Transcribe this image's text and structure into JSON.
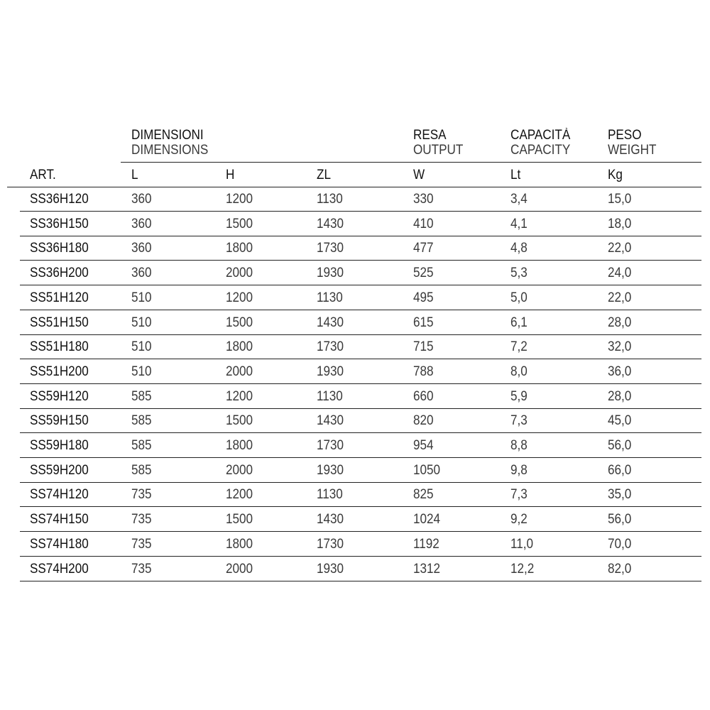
{
  "header": {
    "groups": [
      {
        "it": "DIMENSIONI",
        "en": "DIMENSIONS"
      },
      {
        "it": "RESA",
        "en": "OUTPUT"
      },
      {
        "it": "CAPACITÀ",
        "en": "CAPACITY"
      },
      {
        "it": "PESO",
        "en": "WEIGHT"
      }
    ],
    "columns": [
      "ART.",
      "L",
      "H",
      "ZL",
      "W",
      "Lt",
      "Kg"
    ]
  },
  "rows": [
    [
      "SS36H120",
      "360",
      "1200",
      "1130",
      "330",
      "3,4",
      "15,0"
    ],
    [
      "SS36H150",
      "360",
      "1500",
      "1430",
      "410",
      "4,1",
      "18,0"
    ],
    [
      "SS36H180",
      "360",
      "1800",
      "1730",
      "477",
      "4,8",
      "22,0"
    ],
    [
      "SS36H200",
      "360",
      "2000",
      "1930",
      "525",
      "5,3",
      "24,0"
    ],
    [
      "SS51H120",
      "510",
      "1200",
      "1130",
      "495",
      "5,0",
      "22,0"
    ],
    [
      "SS51H150",
      "510",
      "1500",
      "1430",
      "615",
      "6,1",
      "28,0"
    ],
    [
      "SS51H180",
      "510",
      "1800",
      "1730",
      "715",
      "7,2",
      "32,0"
    ],
    [
      "SS51H200",
      "510",
      "2000",
      "1930",
      "788",
      "8,0",
      "36,0"
    ],
    [
      "SS59H120",
      "585",
      "1200",
      "1130",
      "660",
      "5,9",
      "28,0"
    ],
    [
      "SS59H150",
      "585",
      "1500",
      "1430",
      "820",
      "7,3",
      "45,0"
    ],
    [
      "SS59H180",
      "585",
      "1800",
      "1730",
      "954",
      "8,8",
      "56,0"
    ],
    [
      "SS59H200",
      "585",
      "2000",
      "1930",
      "1050",
      "9,8",
      "66,0"
    ],
    [
      "SS74H120",
      "735",
      "1200",
      "1130",
      "825",
      "7,3",
      "35,0"
    ],
    [
      "SS74H150",
      "735",
      "1500",
      "1430",
      "1024",
      "9,2",
      "56,0"
    ],
    [
      "SS74H180",
      "735",
      "1800",
      "1730",
      "1192",
      "11,0",
      "70,0"
    ],
    [
      "SS74H200",
      "735",
      "2000",
      "1930",
      "1312",
      "12,2",
      "82,0"
    ]
  ]
}
